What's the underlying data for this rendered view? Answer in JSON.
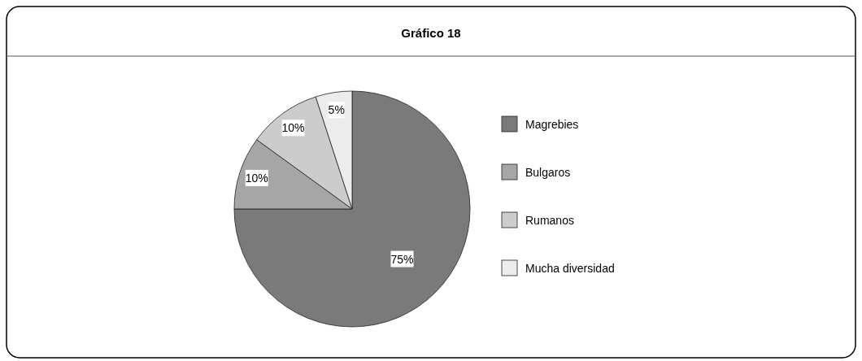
{
  "chart_data": {
    "type": "pie",
    "title": "Gráfico 18",
    "categories": [
      "Magrebies",
      "Bulgaros",
      "Rumanos",
      "Mucha diversidad"
    ],
    "values": [
      75,
      10,
      10,
      5
    ],
    "colors": [
      "#7a7a7a",
      "#a6a6a6",
      "#cccccc",
      "#ececec"
    ],
    "value_labels": [
      "75%",
      "10%",
      "10%",
      "5%"
    ],
    "legend": "right"
  }
}
